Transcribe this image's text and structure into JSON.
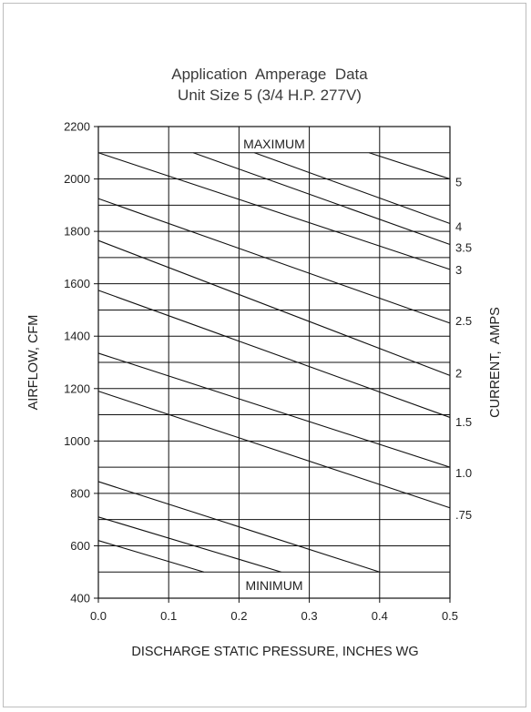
{
  "chart_data": {
    "type": "line",
    "title": "Application  Amperage  Data",
    "subtitle": "Unit Size 5 (3/4 H.P. 277V)",
    "xlabel": "DISCHARGE STATIC PRESSURE, INCHES WG",
    "ylabel": "AIRFLOW, CFM",
    "y2label": "CURRENT,  AMPS",
    "xlim": [
      0.0,
      0.5
    ],
    "ylim": [
      400,
      2200
    ],
    "x_ticks": [
      "0.0",
      "0.1",
      "0.2",
      "0.3",
      "0.4",
      "0.5"
    ],
    "y_ticks": [
      "400",
      "600",
      "800",
      "1000",
      "1200",
      "1400",
      "1600",
      "1800",
      "2000",
      "2200"
    ],
    "vertical_gridlines": [
      0.1,
      0.2,
      0.3,
      0.4
    ],
    "horizontal_gridlines": [
      500,
      600,
      700,
      800,
      900,
      1000,
      1100,
      1200,
      1300,
      1400,
      1500,
      1600,
      1700,
      1800,
      1900,
      2000,
      2100
    ],
    "maximum_label": "MAXIMUM",
    "minimum_label": "MINIMUM",
    "max_airflow": 2100,
    "min_airflow": 500,
    "series": [
      {
        "name": "5",
        "points": [
          [
            0.385,
            2100
          ],
          [
            0.5,
            2000
          ]
        ]
      },
      {
        "name": "4",
        "points": [
          [
            0.222,
            2100
          ],
          [
            0.5,
            1830
          ]
        ]
      },
      {
        "name": "3.5",
        "points": [
          [
            0.135,
            2100
          ],
          [
            0.5,
            1750
          ]
        ]
      },
      {
        "name": "3",
        "points": [
          [
            0.0,
            2100
          ],
          [
            0.5,
            1655
          ]
        ]
      },
      {
        "name": "2.5",
        "points": [
          [
            0.0,
            1925
          ],
          [
            0.5,
            1450
          ]
        ]
      },
      {
        "name": "2",
        "points": [
          [
            0.0,
            1765
          ],
          [
            0.5,
            1250
          ]
        ]
      },
      {
        "name": "1.5",
        "points": [
          [
            0.0,
            1575
          ],
          [
            0.5,
            1090
          ]
        ]
      },
      {
        "name": "1.0",
        "points": [
          [
            0.0,
            1335
          ],
          [
            0.5,
            900
          ]
        ]
      },
      {
        "name": ".75",
        "points": [
          [
            0.0,
            1190
          ],
          [
            0.5,
            745
          ]
        ]
      },
      {
        "name": "",
        "points": [
          [
            0.0,
            845
          ],
          [
            0.4,
            500
          ]
        ]
      },
      {
        "name": "",
        "points": [
          [
            0.0,
            710
          ],
          [
            0.26,
            500
          ]
        ]
      },
      {
        "name": "",
        "points": [
          [
            0.0,
            620
          ],
          [
            0.15,
            500
          ]
        ]
      }
    ],
    "current_labels": [
      {
        "text": "5",
        "y": 1990
      },
      {
        "text": "4",
        "y": 1820
      },
      {
        "text": "3.5",
        "y": 1740
      },
      {
        "text": "3",
        "y": 1655
      },
      {
        "text": "2.5",
        "y": 1460
      },
      {
        "text": "2",
        "y": 1260
      },
      {
        "text": "1.5",
        "y": 1075
      },
      {
        "text": "1.0",
        "y": 880
      },
      {
        "text": ".75",
        "y": 720
      }
    ]
  }
}
